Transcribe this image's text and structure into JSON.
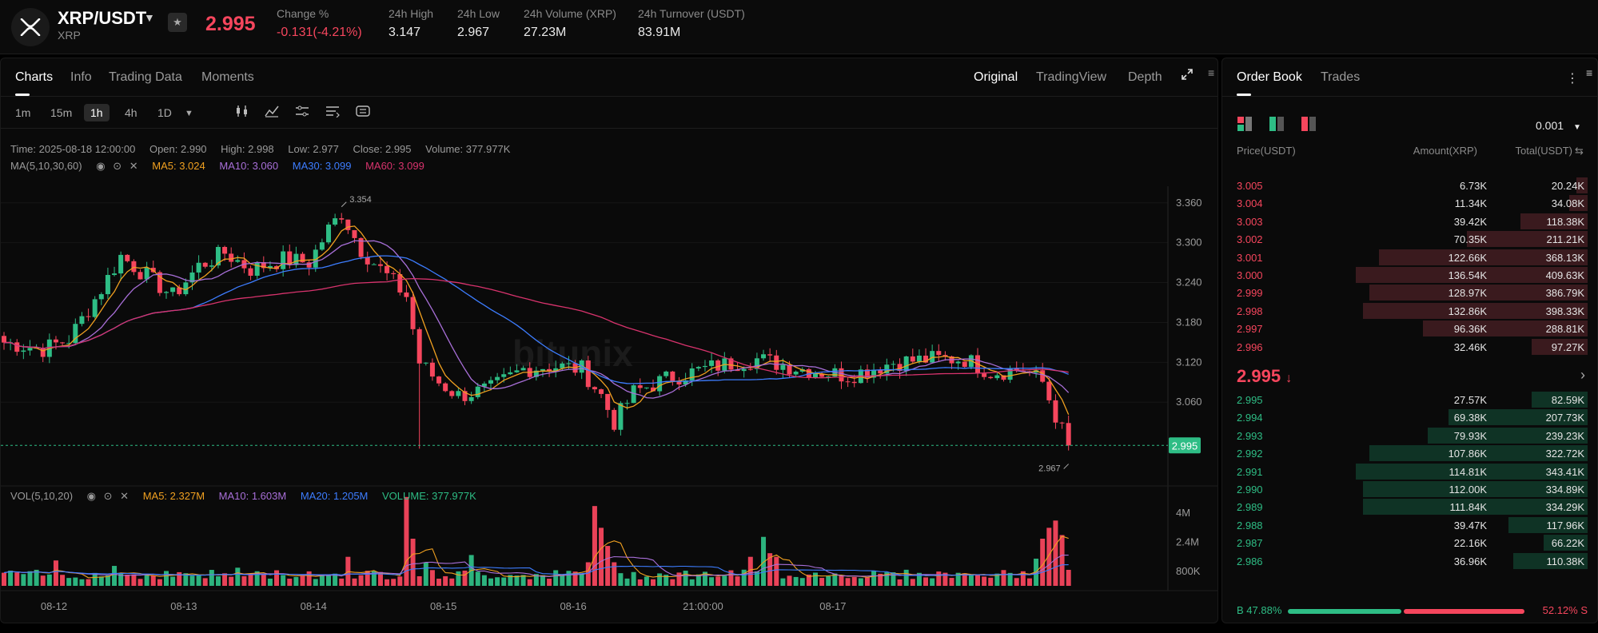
{
  "header": {
    "pair": "XRP/USDT",
    "base": "XRP",
    "last_price": "2.995",
    "stats": [
      {
        "label": "Change %",
        "value": "-0.131(-4.21%)",
        "neg": true
      },
      {
        "label": "24h High",
        "value": "3.147"
      },
      {
        "label": "24h Low",
        "value": "2.967"
      },
      {
        "label": "24h Volume (XRP)",
        "value": "27.23M"
      },
      {
        "label": "24h Turnover (USDT)",
        "value": "83.91M"
      }
    ]
  },
  "chart_tabs": [
    "Charts",
    "Info",
    "Trading Data",
    "Moments"
  ],
  "view_tabs": [
    "Original",
    "TradingView",
    "Depth"
  ],
  "timeframes": [
    "1m",
    "15m",
    "1h",
    "4h",
    "1D"
  ],
  "ohlc": {
    "time": "Time: 2025-08-18 12:00:00",
    "open": "Open: 2.990",
    "high": "High: 2.998",
    "low": "Low: 2.977",
    "close": "Close: 2.995",
    "volume": "Volume: 377.977K"
  },
  "ma_legend": {
    "label": "MA(5,10,30,60)",
    "ma5": "MA5: 3.024",
    "ma10": "MA10: 3.060",
    "ma30": "MA30: 3.099",
    "ma60": "MA60: 3.099"
  },
  "vol_legend": {
    "label": "VOL(5,10,20)",
    "ma5": "MA5: 2.327M",
    "ma10": "MA10: 1.603M",
    "ma20": "MA20: 1.205M",
    "volume": "VOLUME: 377.977K"
  },
  "colors": {
    "up": "#2ebd85",
    "down": "#f6465d",
    "ma5": "#f0a020",
    "ma10": "#a86fd8",
    "ma30": "#3d7dff",
    "ma60": "#d8336d"
  },
  "chart_data": {
    "type": "candlestick",
    "y_ticks": [
      "3.360",
      "3.300",
      "3.240",
      "3.180",
      "3.120",
      "3.060"
    ],
    "ylim": [
      2.94,
      3.385
    ],
    "x_labels": [
      "08-12",
      "08-13",
      "08-14",
      "08-15",
      "08-16",
      "21:00:00",
      "08-17"
    ],
    "price_tag": "2.995",
    "high_marker": "3.354",
    "low_marker": "2.967",
    "vol_ticks": [
      "4M",
      "2.4M",
      "800K"
    ],
    "waypoints": [
      [
        0,
        3.15
      ],
      [
        6,
        3.14
      ],
      [
        10,
        3.155
      ],
      [
        15,
        3.23
      ],
      [
        18,
        3.28
      ],
      [
        22,
        3.25
      ],
      [
        26,
        3.22
      ],
      [
        30,
        3.265
      ],
      [
        34,
        3.285
      ],
      [
        38,
        3.26
      ],
      [
        43,
        3.275
      ],
      [
        47,
        3.27
      ],
      [
        50,
        3.32
      ],
      [
        52,
        3.345
      ],
      [
        55,
        3.29
      ],
      [
        60,
        3.24
      ],
      [
        62,
        3.22
      ],
      [
        64,
        3.12
      ],
      [
        67,
        3.09
      ],
      [
        70,
        3.07
      ],
      [
        75,
        3.08
      ],
      [
        80,
        3.11
      ],
      [
        84,
        3.115
      ],
      [
        89,
        3.11
      ],
      [
        92,
        3.07
      ],
      [
        94,
        3.03
      ],
      [
        97,
        3.075
      ],
      [
        102,
        3.095
      ],
      [
        110,
        3.115
      ],
      [
        116,
        3.125
      ],
      [
        123,
        3.11
      ],
      [
        130,
        3.1
      ],
      [
        137,
        3.12
      ],
      [
        143,
        3.125
      ],
      [
        148,
        3.125
      ],
      [
        152,
        3.105
      ],
      [
        157,
        3.11
      ],
      [
        160,
        3.09
      ],
      [
        162,
        3.04
      ],
      [
        164,
        2.995
      ]
    ],
    "volume_spikes": {
      "8": 1.4,
      "17": 1.1,
      "36": 1.0,
      "53": 1.6,
      "62": 4.9,
      "63": 2.6,
      "65": 1.3,
      "72": 1.7,
      "90": 1.3,
      "91": 4.4,
      "92": 3.2,
      "93": 2.2,
      "94": 1.3,
      "115": 1.6,
      "117": 2.7,
      "118": 1.8,
      "119": 1.6,
      "159": 1.5,
      "160": 2.6,
      "161": 3.2,
      "162": 3.6,
      "163": 2.8
    }
  },
  "book": {
    "tabs": [
      "Order Book",
      "Trades"
    ],
    "step": "0.001",
    "headers": {
      "price": "Price(USDT)",
      "amount": "Amount(XRP)",
      "total": "Total(USDT)"
    },
    "asks": [
      {
        "price": "3.005",
        "amount": "6.73K",
        "total": "20.24K",
        "depth": 0.05
      },
      {
        "price": "3.004",
        "amount": "11.34K",
        "total": "34.08K",
        "depth": 0.08
      },
      {
        "price": "3.003",
        "amount": "39.42K",
        "total": "118.38K",
        "depth": 0.29
      },
      {
        "price": "3.002",
        "amount": "70.35K",
        "total": "211.21K",
        "depth": 0.52
      },
      {
        "price": "3.001",
        "amount": "122.66K",
        "total": "368.13K",
        "depth": 0.9
      },
      {
        "price": "3.000",
        "amount": "136.54K",
        "total": "409.63K",
        "depth": 1.0
      },
      {
        "price": "2.999",
        "amount": "128.97K",
        "total": "386.79K",
        "depth": 0.94
      },
      {
        "price": "2.998",
        "amount": "132.86K",
        "total": "398.33K",
        "depth": 0.97
      },
      {
        "price": "2.997",
        "amount": "96.36K",
        "total": "288.81K",
        "depth": 0.71
      },
      {
        "price": "2.996",
        "amount": "32.46K",
        "total": "97.27K",
        "depth": 0.24
      }
    ],
    "mid_price": "2.995",
    "bids": [
      {
        "price": "2.995",
        "amount": "27.57K",
        "total": "82.59K",
        "depth": 0.24
      },
      {
        "price": "2.994",
        "amount": "69.38K",
        "total": "207.73K",
        "depth": 0.6
      },
      {
        "price": "2.993",
        "amount": "79.93K",
        "total": "239.23K",
        "depth": 0.69
      },
      {
        "price": "2.992",
        "amount": "107.86K",
        "total": "322.72K",
        "depth": 0.94
      },
      {
        "price": "2.991",
        "amount": "114.81K",
        "total": "343.41K",
        "depth": 1.0
      },
      {
        "price": "2.990",
        "amount": "112.00K",
        "total": "334.89K",
        "depth": 0.97
      },
      {
        "price": "2.989",
        "amount": "111.84K",
        "total": "334.29K",
        "depth": 0.97
      },
      {
        "price": "2.988",
        "amount": "39.47K",
        "total": "117.96K",
        "depth": 0.34
      },
      {
        "price": "2.987",
        "amount": "22.16K",
        "total": "66.22K",
        "depth": 0.19
      },
      {
        "price": "2.986",
        "amount": "36.96K",
        "total": "110.38K",
        "depth": 0.32
      }
    ],
    "buy_label": "B 47.88%",
    "sell_label": "52.12% S",
    "buy_ratio": 0.4788
  }
}
